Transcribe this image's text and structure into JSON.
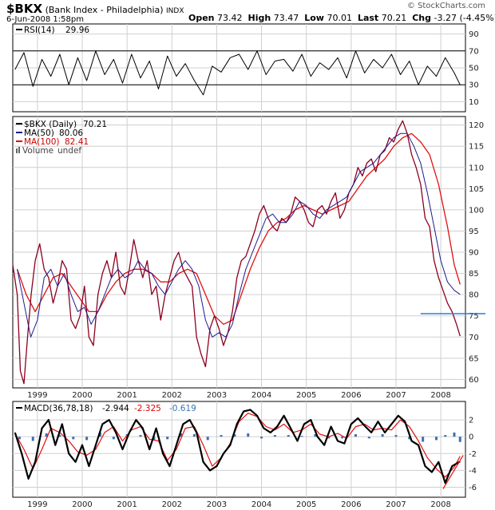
{
  "header": {
    "symbol": "$BKX",
    "name": "(Bank Index - Philadelphia)",
    "exchange": "INDX",
    "date": "6-Jun-2008 1:58pm",
    "watermark": "© StockCharts.com",
    "quote": [
      {
        "label": "Open",
        "value": "73.42"
      },
      {
        "label": "High",
        "value": "73.47"
      },
      {
        "label": "Low",
        "value": "70.01"
      },
      {
        "label": "Last",
        "value": "70.21"
      },
      {
        "label": "Chg",
        "value": "-3.27 (-4.45%)"
      }
    ]
  },
  "colors": {
    "price": "#8b0020",
    "ma50": "#1c1c8c",
    "ma100": "#e01010",
    "support": "#2f7fd0",
    "rsi": "#000000",
    "macd": "#000000",
    "signal": "#e01010",
    "histogram": "#3b72b4",
    "grid": "#cfcfcf"
  },
  "chart_data": [
    {
      "type": "line",
      "panel": "rsi",
      "legend": {
        "label": "RSI(14)",
        "value": "29.96"
      },
      "ylim": [
        0,
        100
      ],
      "yticks": [
        10,
        30,
        50,
        70,
        90
      ],
      "reference_lines": [
        30,
        70
      ],
      "series": [
        {
          "name": "RSI(14)",
          "x": [
            1998.5,
            1998.7,
            1998.9,
            1999.1,
            1999.3,
            1999.5,
            1999.7,
            1999.9,
            2000.1,
            2000.3,
            2000.5,
            2000.7,
            2000.9,
            2001.1,
            2001.3,
            2001.5,
            2001.7,
            2001.9,
            2002.1,
            2002.3,
            2002.5,
            2002.7,
            2002.9,
            2003.1,
            2003.3,
            2003.5,
            2003.7,
            2003.9,
            2004.1,
            2004.3,
            2004.5,
            2004.7,
            2004.9,
            2005.1,
            2005.3,
            2005.5,
            2005.7,
            2005.9,
            2006.1,
            2006.3,
            2006.5,
            2006.7,
            2006.9,
            2007.1,
            2007.3,
            2007.5,
            2007.7,
            2007.9,
            2008.1,
            2008.3,
            2008.43
          ],
          "values": [
            48,
            68,
            28,
            60,
            40,
            66,
            30,
            62,
            35,
            70,
            42,
            60,
            32,
            66,
            38,
            58,
            25,
            64,
            40,
            55,
            35,
            18,
            52,
            45,
            62,
            66,
            48,
            70,
            42,
            58,
            60,
            46,
            66,
            40,
            56,
            48,
            62,
            38,
            70,
            44,
            60,
            50,
            66,
            42,
            58,
            30,
            52,
            40,
            62,
            44,
            30
          ]
        }
      ]
    },
    {
      "type": "line",
      "panel": "price",
      "legend": [
        {
          "label": "$BKX (Daily)",
          "value": "70.21"
        },
        {
          "label": "MA(50)",
          "value": "80.06"
        },
        {
          "label": "MA(100)",
          "value": "82.41"
        },
        {
          "label": "Volume",
          "value": "undef"
        }
      ],
      "xlabel": "",
      "ylabel": "",
      "xlim": [
        1998.45,
        2008.55
      ],
      "ylim": [
        58,
        122
      ],
      "yticks": [
        60,
        65,
        70,
        75,
        80,
        85,
        90,
        95,
        100,
        105,
        110,
        115,
        120
      ],
      "x_categories": [
        "1999",
        "2000",
        "2001",
        "2002",
        "2003",
        "2004",
        "2005",
        "2006",
        "2007",
        "2008"
      ],
      "x_tick_positions": [
        1999,
        2000,
        2001,
        2002,
        2003,
        2004,
        2005,
        2006,
        2007,
        2008
      ],
      "support_line": 75.5,
      "series": [
        {
          "name": "$BKX (Daily)",
          "x": [
            1998.45,
            1998.55,
            1998.62,
            1998.7,
            1998.78,
            1998.86,
            1998.95,
            1999.05,
            1999.15,
            1999.25,
            1999.35,
            1999.45,
            1999.55,
            1999.65,
            1999.75,
            1999.85,
            1999.95,
            2000.05,
            2000.15,
            2000.25,
            2000.35,
            2000.45,
            2000.55,
            2000.65,
            2000.75,
            2000.85,
            2000.95,
            2001.05,
            2001.15,
            2001.25,
            2001.35,
            2001.45,
            2001.55,
            2001.65,
            2001.75,
            2001.85,
            2001.95,
            2002.05,
            2002.15,
            2002.25,
            2002.35,
            2002.45,
            2002.55,
            2002.65,
            2002.75,
            2002.85,
            2002.95,
            2003.05,
            2003.15,
            2003.25,
            2003.35,
            2003.45,
            2003.55,
            2003.65,
            2003.75,
            2003.85,
            2003.95,
            2004.05,
            2004.15,
            2004.25,
            2004.35,
            2004.45,
            2004.55,
            2004.65,
            2004.75,
            2004.85,
            2004.95,
            2005.05,
            2005.15,
            2005.25,
            2005.35,
            2005.45,
            2005.55,
            2005.65,
            2005.75,
            2005.85,
            2005.95,
            2006.05,
            2006.15,
            2006.25,
            2006.35,
            2006.45,
            2006.55,
            2006.65,
            2006.75,
            2006.85,
            2006.95,
            2007.05,
            2007.15,
            2007.25,
            2007.35,
            2007.45,
            2007.55,
            2007.65,
            2007.75,
            2007.85,
            2007.95,
            2008.05,
            2008.15,
            2008.25,
            2008.35,
            2008.43
          ],
          "values": [
            87,
            80,
            62,
            59,
            70,
            80,
            88,
            92,
            86,
            84,
            78,
            82,
            88,
            86,
            74,
            72,
            75,
            82,
            70,
            68,
            80,
            85,
            88,
            84,
            90,
            82,
            80,
            86,
            93,
            88,
            84,
            88,
            80,
            82,
            74,
            80,
            84,
            88,
            90,
            86,
            84,
            82,
            70,
            66,
            63,
            72,
            75,
            72,
            68,
            71,
            76,
            84,
            88,
            89,
            92,
            95,
            99,
            101,
            98,
            96,
            95,
            98,
            97,
            99,
            103,
            102,
            100,
            97,
            96,
            100,
            101,
            99,
            102,
            104,
            98,
            100,
            104,
            106,
            110,
            108,
            111,
            112,
            109,
            113,
            114,
            117,
            116,
            119,
            121,
            118,
            113,
            110,
            106,
            98,
            96,
            88,
            84,
            81,
            78,
            76,
            73,
            70.21
          ]
        },
        {
          "name": "MA(50)",
          "x": [
            1998.55,
            1998.7,
            1998.85,
            1999.0,
            1999.15,
            1999.3,
            1999.45,
            1999.6,
            1999.75,
            1999.9,
            2000.05,
            2000.2,
            2000.35,
            2000.5,
            2000.65,
            2000.8,
            2000.95,
            2001.1,
            2001.25,
            2001.4,
            2001.55,
            2001.7,
            2001.85,
            2002.0,
            2002.15,
            2002.3,
            2002.45,
            2002.6,
            2002.75,
            2002.9,
            2003.05,
            2003.2,
            2003.35,
            2003.5,
            2003.65,
            2003.8,
            2003.95,
            2004.1,
            2004.25,
            2004.4,
            2004.55,
            2004.7,
            2004.85,
            2005.0,
            2005.15,
            2005.3,
            2005.45,
            2005.6,
            2005.75,
            2005.9,
            2006.05,
            2006.2,
            2006.35,
            2006.5,
            2006.65,
            2006.8,
            2006.95,
            2007.1,
            2007.25,
            2007.4,
            2007.55,
            2007.7,
            2007.85,
            2008.0,
            2008.15,
            2008.3,
            2008.43
          ],
          "values": [
            86,
            78,
            70,
            74,
            84,
            86,
            82,
            85,
            80,
            76,
            77,
            73,
            76,
            80,
            84,
            86,
            84,
            85,
            88,
            86,
            85,
            82,
            80,
            83,
            86,
            88,
            86,
            82,
            74,
            70,
            71,
            70,
            73,
            80,
            86,
            90,
            94,
            98,
            99,
            97,
            97,
            99,
            102,
            101,
            99,
            98,
            100,
            101,
            102,
            103,
            106,
            109,
            110,
            111,
            113,
            115,
            117,
            118,
            118,
            115,
            111,
            104,
            96,
            88,
            83,
            81,
            80.06
          ]
        },
        {
          "name": "MA(100)",
          "x": [
            1998.55,
            1998.75,
            1998.95,
            1999.15,
            1999.35,
            1999.55,
            1999.75,
            1999.95,
            2000.15,
            2000.35,
            2000.55,
            2000.75,
            2000.95,
            2001.15,
            2001.35,
            2001.55,
            2001.75,
            2001.95,
            2002.15,
            2002.35,
            2002.55,
            2002.75,
            2002.95,
            2003.15,
            2003.35,
            2003.55,
            2003.75,
            2003.95,
            2004.15,
            2004.35,
            2004.55,
            2004.75,
            2004.95,
            2005.15,
            2005.35,
            2005.55,
            2005.75,
            2005.95,
            2006.15,
            2006.35,
            2006.55,
            2006.75,
            2006.95,
            2007.15,
            2007.35,
            2007.55,
            2007.75,
            2007.95,
            2008.15,
            2008.3,
            2008.43
          ],
          "values": [
            86,
            80,
            76,
            80,
            84,
            85,
            82,
            79,
            76,
            76,
            80,
            83,
            85,
            86,
            86,
            85,
            83,
            83,
            85,
            86,
            85,
            80,
            75,
            73,
            74,
            80,
            86,
            91,
            95,
            97,
            98,
            100,
            101,
            100,
            99,
            100,
            101,
            102,
            105,
            108,
            110,
            112,
            115,
            117,
            118,
            116,
            113,
            106,
            96,
            87,
            82.41
          ]
        }
      ]
    },
    {
      "type": "line",
      "panel": "macd",
      "legend": {
        "label": "MACD(36,78,18)",
        "values": [
          "-2.944",
          "-2.325",
          "-0.619"
        ]
      },
      "ylim": [
        -7,
        4
      ],
      "yticks": [
        -6,
        -4,
        -2,
        0,
        2
      ],
      "x_categories": [
        "1999",
        "2000",
        "2001",
        "2002",
        "2003",
        "2004",
        "2005",
        "2006",
        "2007",
        "2008"
      ],
      "trendline": {
        "from": [
          2008.05,
          -6.2
        ],
        "to": [
          2008.5,
          -2.2
        ]
      },
      "series": [
        {
          "name": "MACD",
          "x": [
            1998.5,
            1998.65,
            1998.8,
            1998.95,
            1999.1,
            1999.25,
            1999.4,
            1999.55,
            1999.7,
            1999.85,
            2000.0,
            2000.15,
            2000.3,
            2000.45,
            2000.6,
            2000.75,
            2000.9,
            2001.05,
            2001.2,
            2001.35,
            2001.5,
            2001.65,
            2001.8,
            2001.95,
            2002.1,
            2002.25,
            2002.4,
            2002.55,
            2002.7,
            2002.85,
            2003.0,
            2003.15,
            2003.3,
            2003.45,
            2003.6,
            2003.75,
            2003.9,
            2004.05,
            2004.2,
            2004.35,
            2004.5,
            2004.65,
            2004.8,
            2004.95,
            2005.1,
            2005.25,
            2005.4,
            2005.55,
            2005.7,
            2005.85,
            2006.0,
            2006.15,
            2006.3,
            2006.45,
            2006.6,
            2006.75,
            2006.9,
            2007.05,
            2007.2,
            2007.35,
            2007.5,
            2007.65,
            2007.8,
            2007.95,
            2008.1,
            2008.25,
            2008.43
          ],
          "values": [
            0.5,
            -2,
            -5,
            -3,
            1,
            2,
            -1,
            1.5,
            -2,
            -3,
            -1,
            -3.5,
            -1,
            1.5,
            2,
            0.5,
            -1.5,
            0.5,
            2,
            1,
            -1.5,
            1,
            -2,
            -3.5,
            -1,
            1.5,
            2,
            0.5,
            -3,
            -4,
            -3.5,
            -2,
            -1,
            1.5,
            3,
            3.2,
            2.5,
            1,
            0.5,
            1.2,
            2.5,
            1,
            -0.5,
            1.5,
            2,
            0,
            -1,
            1.2,
            -0.5,
            -0.8,
            1.5,
            2.2,
            1.3,
            0.5,
            1.8,
            0.5,
            1.5,
            2.5,
            1.8,
            -0.5,
            -1,
            -3.5,
            -4.2,
            -3,
            -5.5,
            -3.5,
            -2.944
          ]
        },
        {
          "name": "Signal",
          "x": [
            1998.5,
            1998.7,
            1998.9,
            1999.1,
            1999.3,
            1999.5,
            1999.7,
            1999.9,
            2000.1,
            2000.3,
            2000.5,
            2000.7,
            2000.9,
            2001.1,
            2001.3,
            2001.5,
            2001.7,
            2001.9,
            2002.1,
            2002.3,
            2002.5,
            2002.7,
            2002.9,
            2003.1,
            2003.3,
            2003.5,
            2003.7,
            2003.9,
            2004.1,
            2004.3,
            2004.5,
            2004.7,
            2004.9,
            2005.1,
            2005.3,
            2005.5,
            2005.7,
            2005.9,
            2006.1,
            2006.3,
            2006.5,
            2006.7,
            2006.9,
            2007.1,
            2007.3,
            2007.5,
            2007.7,
            2007.9,
            2008.1,
            2008.3,
            2008.43
          ],
          "values": [
            0.4,
            -1.5,
            -3.8,
            -1.5,
            1,
            0.5,
            -0.5,
            -1.8,
            -2.2,
            -1.5,
            0.5,
            1.2,
            -0.5,
            0.8,
            1.2,
            -0.3,
            -0.5,
            -2.8,
            -1.5,
            1,
            1.2,
            -1,
            -3.5,
            -2.5,
            -0.8,
            1.8,
            2.8,
            2.4,
            1.2,
            0.8,
            1.5,
            0.5,
            0.8,
            1.5,
            0.3,
            0,
            0.4,
            -0.2,
            1.2,
            1.5,
            0.8,
            1,
            0.8,
            2,
            1.2,
            -0.5,
            -2.5,
            -3.8,
            -4.8,
            -3.6,
            -2.325
          ]
        },
        {
          "name": "Histogram",
          "x": [
            1998.6,
            1998.9,
            1999.2,
            1999.5,
            1999.8,
            2000.1,
            2000.4,
            2000.7,
            2001.0,
            2001.3,
            2001.6,
            2001.9,
            2002.2,
            2002.5,
            2002.8,
            2003.1,
            2003.4,
            2003.7,
            2004.0,
            2004.3,
            2004.6,
            2004.9,
            2005.2,
            2005.5,
            2005.8,
            2006.1,
            2006.4,
            2006.7,
            2007.0,
            2007.3,
            2007.6,
            2007.9,
            2008.1,
            2008.3,
            2008.43
          ],
          "values": [
            -0.3,
            -0.5,
            0.4,
            0.2,
            -0.3,
            -0.4,
            0.5,
            -0.3,
            0.3,
            0.2,
            -0.4,
            -0.3,
            0.4,
            0.3,
            -0.4,
            0.2,
            0.3,
            0.4,
            -0.2,
            0.2,
            0.2,
            0.1,
            0.3,
            -0.2,
            -0.2,
            0.3,
            -0.2,
            0.3,
            0.2,
            -0.3,
            -0.6,
            -0.4,
            0.2,
            0.5,
            -0.619
          ]
        }
      ]
    }
  ]
}
